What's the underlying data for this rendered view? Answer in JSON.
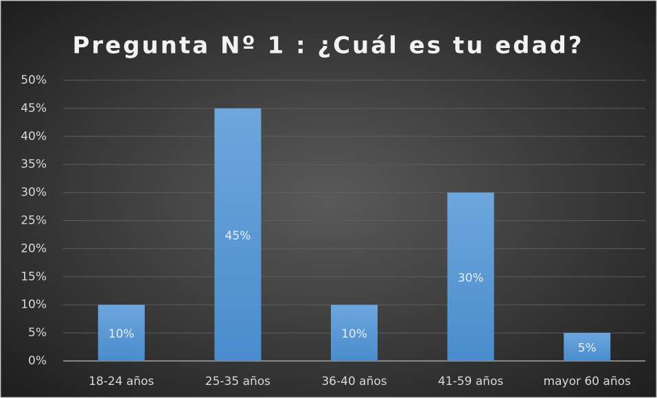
{
  "chart_data": {
    "type": "bar",
    "title": "Pregunta Nº 1 : ¿Cuál es tu edad?",
    "categories": [
      "18-24 años",
      "25-35 años",
      "36-40 años",
      "41-59 años",
      "mayor 60 años"
    ],
    "values": [
      10,
      45,
      10,
      30,
      5
    ],
    "value_labels": [
      "10%",
      "45%",
      "10%",
      "30%",
      "5%"
    ],
    "color": "#5b9bd5",
    "ylim": [
      0,
      50
    ],
    "yticks": [
      {
        "value": 0,
        "label": "0%"
      },
      {
        "value": 5,
        "label": "5%"
      },
      {
        "value": 10,
        "label": "10%"
      },
      {
        "value": 15,
        "label": "15%"
      },
      {
        "value": 20,
        "label": "20%"
      },
      {
        "value": 25,
        "label": "25%"
      },
      {
        "value": 30,
        "label": "30%"
      },
      {
        "value": 35,
        "label": "35%"
      },
      {
        "value": 40,
        "label": "40%"
      },
      {
        "value": 45,
        "label": "45%"
      },
      {
        "value": 50,
        "label": "50%"
      }
    ],
    "grid": true
  }
}
